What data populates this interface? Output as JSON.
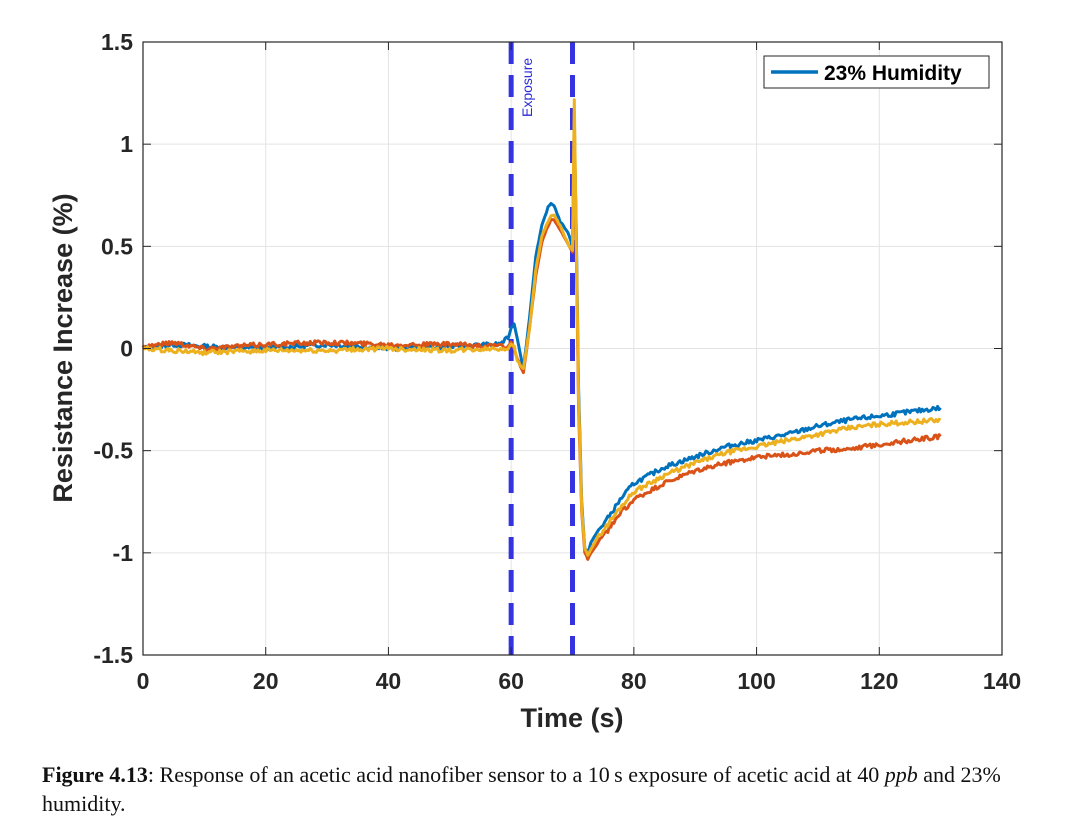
{
  "chart_data": {
    "type": "line",
    "xlabel": "Time (s)",
    "ylabel": "Resistance Increase (%)",
    "xlim": [
      0,
      140
    ],
    "ylim": [
      -1.5,
      1.5
    ],
    "xticks": [
      0,
      20,
      40,
      60,
      80,
      100,
      120,
      140
    ],
    "xtick_labels": [
      "0",
      "20",
      "40",
      "60",
      "80",
      "100",
      "120",
      "140"
    ],
    "yticks": [
      -1.5,
      -1,
      -0.5,
      0,
      0.5,
      1,
      1.5
    ],
    "ytick_labels": [
      "-1.5",
      "-1",
      "-0.5",
      "0",
      "0.5",
      "1",
      "1.5"
    ],
    "grid": true,
    "legend": {
      "placement": "top-right",
      "entries": [
        "23% Humidity"
      ]
    },
    "exposure": {
      "label": "Exposure",
      "start": 60,
      "end": 70
    },
    "series": [
      {
        "name": "23% Humidity",
        "color": "#0072BD",
        "x": [
          0,
          5,
          10,
          20,
          30,
          40,
          50,
          58,
          59.5,
          60,
          60.5,
          61,
          62,
          63,
          64,
          65,
          66,
          66.5,
          67,
          68,
          69,
          69.5,
          70,
          70.3,
          70.6,
          71,
          71.5,
          72,
          72.5,
          73,
          74,
          76,
          78,
          80,
          85,
          90,
          95,
          100,
          105,
          110,
          115,
          120,
          125,
          130
        ],
        "y": [
          0,
          0.02,
          0.01,
          0.0,
          0.02,
          0.0,
          0.01,
          0.02,
          0.05,
          0.1,
          0.12,
          0.05,
          -0.1,
          0.15,
          0.45,
          0.6,
          0.69,
          0.71,
          0.7,
          0.62,
          0.58,
          0.55,
          0.5,
          1.05,
          0.6,
          -0.2,
          -0.75,
          -0.98,
          -1.0,
          -0.95,
          -0.9,
          -0.82,
          -0.73,
          -0.66,
          -0.58,
          -0.53,
          -0.48,
          -0.45,
          -0.42,
          -0.38,
          -0.35,
          -0.33,
          -0.31,
          -0.29
        ]
      },
      {
        "name": "",
        "color": "#D95319",
        "x": [
          0,
          5,
          10,
          20,
          30,
          40,
          50,
          58,
          59.5,
          60,
          60.5,
          61,
          62,
          63,
          64,
          65,
          66,
          66.5,
          67,
          68,
          69,
          69.5,
          70,
          70.3,
          70.6,
          71,
          71.5,
          72,
          72.5,
          73,
          74,
          76,
          78,
          80,
          85,
          90,
          95,
          100,
          105,
          110,
          115,
          120,
          125,
          130
        ],
        "y": [
          0.01,
          0.03,
          0.0,
          0.02,
          0.03,
          0.02,
          0.02,
          0.01,
          0.01,
          0.03,
          0.0,
          -0.05,
          -0.12,
          0.1,
          0.35,
          0.52,
          0.6,
          0.63,
          0.63,
          0.58,
          0.53,
          0.5,
          0.47,
          1.15,
          0.5,
          -0.3,
          -0.8,
          -1.0,
          -1.03,
          -1.0,
          -0.96,
          -0.88,
          -0.8,
          -0.74,
          -0.66,
          -0.6,
          -0.56,
          -0.53,
          -0.52,
          -0.5,
          -0.49,
          -0.47,
          -0.45,
          -0.43
        ]
      },
      {
        "name": "",
        "color": "#EDB120",
        "x": [
          0,
          5,
          10,
          20,
          30,
          40,
          50,
          58,
          59.5,
          60,
          60.5,
          61,
          62,
          63,
          64,
          65,
          66,
          66.5,
          67,
          68,
          69,
          69.5,
          70,
          70.3,
          70.6,
          71,
          71.5,
          72,
          72.5,
          73,
          74,
          76,
          78,
          80,
          85,
          90,
          95,
          100,
          105,
          110,
          115,
          120,
          125,
          130
        ],
        "y": [
          0.0,
          -0.01,
          -0.02,
          -0.01,
          -0.01,
          0.0,
          -0.01,
          0.0,
          0.0,
          0.02,
          0.01,
          -0.06,
          -0.1,
          0.1,
          0.38,
          0.55,
          0.62,
          0.65,
          0.65,
          0.6,
          0.53,
          0.5,
          0.48,
          1.22,
          0.55,
          -0.25,
          -0.78,
          -0.98,
          -1.01,
          -0.98,
          -0.93,
          -0.85,
          -0.77,
          -0.7,
          -0.62,
          -0.56,
          -0.51,
          -0.48,
          -0.45,
          -0.42,
          -0.39,
          -0.37,
          -0.36,
          -0.35
        ]
      }
    ]
  },
  "caption": {
    "label": "Figure 4.13",
    "text_part1": ": Response of an acetic acid nanofiber sensor to a 10 s exposure of acetic acid at 40 ",
    "italic": "ppb",
    "text_part2": " and 23% humidity."
  }
}
